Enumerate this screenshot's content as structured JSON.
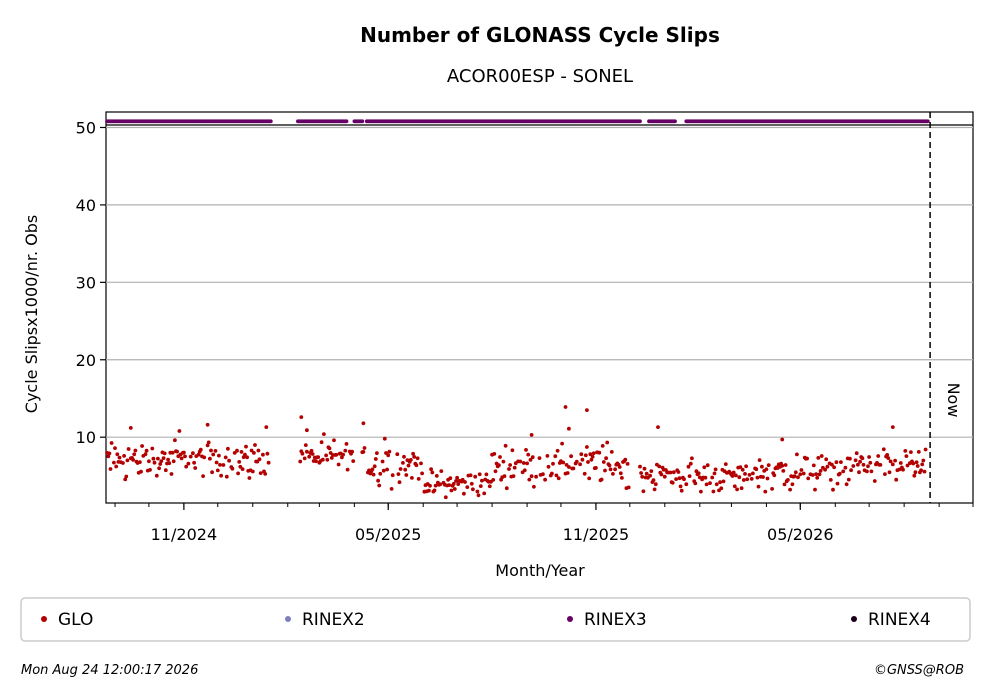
{
  "chart_data": {
    "type": "scatter",
    "title": "Number of GLONASS Cycle Slips",
    "subtitle": "ACOR00ESP - SONEL",
    "xlabel": "Month/Year",
    "ylabel": "Cycle Slipsx1000/nr. Obs",
    "x_range": [
      "2024-08-24",
      "2026-10-01"
    ],
    "ylim": [
      1.5,
      52
    ],
    "y_ticks": [
      10,
      20,
      30,
      40,
      50
    ],
    "x_ticks": [
      {
        "date": "2024-11-01",
        "label": "11/2024"
      },
      {
        "date": "2025-05-01",
        "label": "05/2025"
      },
      {
        "date": "2025-11-01",
        "label": "11/2025"
      },
      {
        "date": "2026-05-01",
        "label": "05/2026"
      }
    ],
    "now_date": "2026-08-24",
    "now_label": "Now",
    "grid": "y",
    "series": [
      {
        "name": "GLO",
        "color": "#b30000",
        "segments": [
          {
            "start": "2024-08-25",
            "end": "2025-01-15",
            "level": 7,
            "spread": 1.6
          },
          {
            "start": "2025-02-12",
            "end": "2025-03-31",
            "level": 7.5,
            "spread": 1.5
          },
          {
            "start": "2025-04-08",
            "end": "2025-05-31",
            "level": 6.5,
            "spread": 1.8
          },
          {
            "start": "2025-06-01",
            "end": "2025-07-31",
            "level": 4,
            "spread": 1.1
          },
          {
            "start": "2025-08-01",
            "end": "2025-09-30",
            "level": 6.3,
            "spread": 1.6
          },
          {
            "start": "2025-10-01",
            "end": "2025-11-30",
            "level": 6.5,
            "spread": 2
          },
          {
            "start": "2025-12-10",
            "end": "2026-01-20",
            "level": 5,
            "spread": 1.3
          },
          {
            "start": "2026-01-22",
            "end": "2026-03-15",
            "level": 4.8,
            "spread": 1.4
          },
          {
            "start": "2026-03-16",
            "end": "2026-06-15",
            "level": 5.5,
            "spread": 1.5
          },
          {
            "start": "2026-06-16",
            "end": "2026-08-20",
            "level": 6.5,
            "spread": 1.5
          }
        ],
        "spikes": [
          {
            "date": "2024-09-15",
            "value": 11.2
          },
          {
            "date": "2024-10-28",
            "value": 10.8
          },
          {
            "date": "2024-11-22",
            "value": 11.6
          },
          {
            "date": "2025-01-13",
            "value": 11.3
          },
          {
            "date": "2025-02-13",
            "value": 12.6
          },
          {
            "date": "2025-02-18",
            "value": 10.9
          },
          {
            "date": "2025-04-09",
            "value": 11.8
          },
          {
            "date": "2025-04-28",
            "value": 9.8
          },
          {
            "date": "2025-09-05",
            "value": 10.3
          },
          {
            "date": "2025-10-05",
            "value": 13.9
          },
          {
            "date": "2025-10-08",
            "value": 11.1
          },
          {
            "date": "2025-10-24",
            "value": 13.5
          },
          {
            "date": "2025-12-26",
            "value": 11.3
          },
          {
            "date": "2026-04-15",
            "value": 9.7
          },
          {
            "date": "2026-07-22",
            "value": 11.3
          }
        ]
      },
      {
        "name": "RINEX2",
        "color": "#7f7fbf"
      },
      {
        "name": "RINEX3",
        "color": "#660066",
        "value": 50.8,
        "availability": [
          {
            "start": "2024-08-25",
            "end": "2025-01-17"
          },
          {
            "start": "2025-02-10",
            "end": "2025-03-25"
          },
          {
            "start": "2025-04-01",
            "end": "2025-04-08"
          },
          {
            "start": "2025-04-12",
            "end": "2025-12-10"
          },
          {
            "start": "2025-12-18",
            "end": "2026-01-10"
          },
          {
            "start": "2026-01-20",
            "end": "2026-08-22"
          }
        ]
      },
      {
        "name": "RINEX4",
        "color": "#1a0019"
      }
    ]
  },
  "legend": [
    {
      "label": "GLO",
      "color": "#b30000"
    },
    {
      "label": "RINEX2",
      "color": "#7f7fbf"
    },
    {
      "label": "RINEX3",
      "color": "#660066"
    },
    {
      "label": "RINEX4",
      "color": "#1a0019"
    }
  ],
  "footer": {
    "timestamp": "Mon Aug 24 12:00:17 2026",
    "copyright": "©GNSS@ROB"
  }
}
